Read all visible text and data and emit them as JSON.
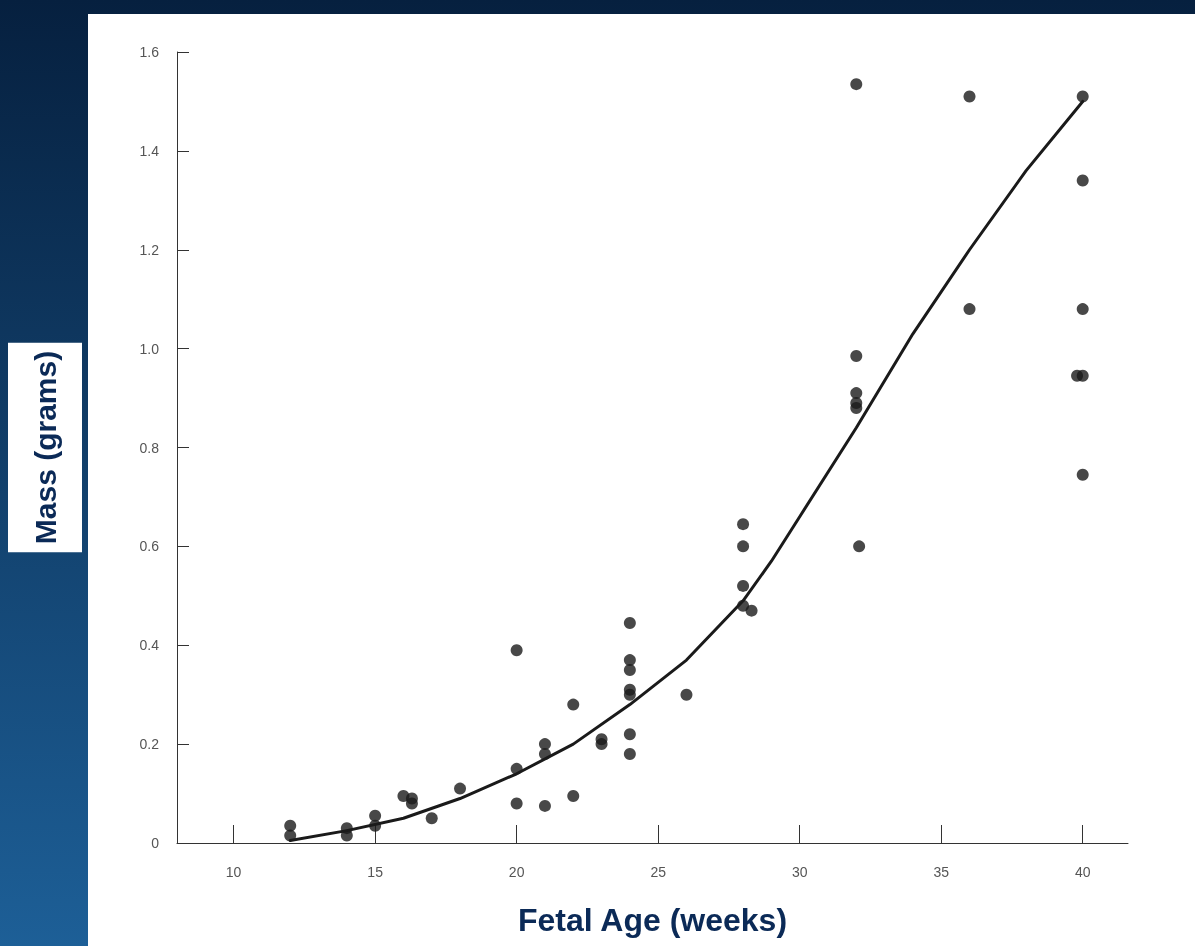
{
  "chart_data": {
    "type": "scatter",
    "xlabel": "Fetal Age (weeks)",
    "ylabel": "Mass (grams)",
    "xlim": [
      8,
      41.6
    ],
    "xticks": [
      10,
      15,
      20,
      25,
      30,
      35,
      40
    ],
    "ylim": [
      0,
      1.6
    ],
    "yticks": [
      {
        "value": 0,
        "label": "0"
      },
      {
        "value": 0.2,
        "label": "0.2"
      },
      {
        "value": 0.4,
        "label": "0.4"
      },
      {
        "value": 0.6,
        "label": "0.6"
      },
      {
        "value": 0.8,
        "label": "0.8"
      },
      {
        "value": 1,
        "label": "1.0"
      },
      {
        "value": 1.2,
        "label": "1.2"
      },
      {
        "value": 1.4,
        "label": "1.4"
      },
      {
        "value": 1.6,
        "label": "1.6"
      }
    ],
    "grid": false,
    "series": [
      {
        "marker": "circle",
        "color": "#1a1a1a",
        "x": [
          12,
          12,
          14,
          14,
          15,
          15,
          16,
          16.3,
          16.3,
          17,
          18,
          20,
          20,
          20,
          21,
          21,
          21,
          22,
          22,
          23,
          23,
          24,
          24,
          24,
          24,
          24,
          24,
          24,
          26,
          28,
          28,
          28,
          28,
          28.3,
          32,
          32,
          32,
          32,
          32,
          32.1,
          36,
          36,
          40,
          40,
          40,
          39.8,
          40,
          40
        ],
        "values": [
          0.035,
          0.015,
          0.03,
          0.015,
          0.055,
          0.035,
          0.095,
          0.09,
          0.08,
          0.05,
          0.11,
          0.39,
          0.15,
          0.08,
          0.2,
          0.18,
          0.075,
          0.28,
          0.095,
          0.21,
          0.2,
          0.445,
          0.37,
          0.35,
          0.31,
          0.3,
          0.22,
          0.18,
          0.3,
          0.645,
          0.6,
          0.52,
          0.48,
          0.47,
          1.535,
          0.985,
          0.91,
          0.89,
          0.88,
          0.6,
          1.51,
          1.08,
          1.51,
          1.34,
          1.08,
          0.945,
          0.945,
          0.745
        ]
      },
      {
        "type": "line",
        "color": "#1a1a1a",
        "line_style": "solid",
        "x": [
          12,
          14,
          16,
          18,
          20,
          22,
          24,
          26,
          28,
          29,
          30,
          32,
          34,
          36,
          38,
          40
        ],
        "values": [
          0.005,
          0.025,
          0.05,
          0.09,
          0.14,
          0.2,
          0.28,
          0.37,
          0.49,
          0.57,
          0.66,
          0.84,
          1.03,
          1.2,
          1.36,
          1.5
        ]
      }
    ]
  }
}
